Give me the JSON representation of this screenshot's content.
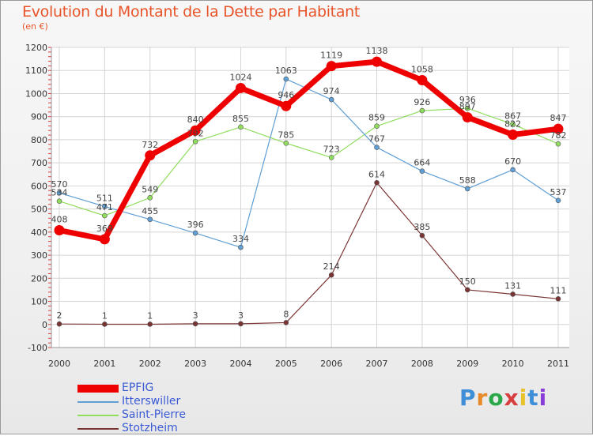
{
  "title": "Evolution du Montant de la Dette par Habitant",
  "subtitle": "(en €)",
  "brand": {
    "text": "Proxiti",
    "letters": [
      "P",
      "r",
      "o",
      "x",
      "i",
      "t",
      "i"
    ],
    "colors": [
      "#3e8fd8",
      "#e88a2a",
      "#2aa84a",
      "#d83e3e",
      "#e8c22a",
      "#3e8fd8",
      "#8a3ed8"
    ]
  },
  "chart_data": {
    "type": "line",
    "x": [
      "2000",
      "2001",
      "2002",
      "2003",
      "2004",
      "2005",
      "2006",
      "2007",
      "2008",
      "2009",
      "2010",
      "2011"
    ],
    "ylim": [
      -100,
      1200
    ],
    "yticks": [
      -100,
      0,
      100,
      200,
      300,
      400,
      500,
      600,
      700,
      800,
      900,
      1000,
      1100,
      1200
    ],
    "grid": true,
    "legend_position": "bottom-left",
    "series": [
      {
        "name": "EPFIG",
        "color": "#ee0000",
        "values": [
          408,
          369,
          732,
          840,
          1024,
          946,
          1119,
          1138,
          1058,
          897,
          822,
          847
        ],
        "labels": [
          "408",
          "369",
          "732",
          "840",
          "1024",
          "946",
          "1119",
          "1138",
          "1058",
          "897",
          "822",
          "847"
        ]
      },
      {
        "name": "Itterswiller",
        "color": "#5f9fd6",
        "values": [
          570,
          511,
          455,
          396,
          334,
          1063,
          974,
          767,
          664,
          588,
          670,
          537
        ],
        "labels": [
          "570",
          "511",
          "455",
          "396",
          "334",
          "1063",
          "974",
          "767",
          "664",
          "588",
          "670",
          "537"
        ]
      },
      {
        "name": "Saint-Pierre",
        "color": "#90dd5e",
        "values": [
          534,
          471,
          549,
          792,
          855,
          785,
          723,
          859,
          926,
          936,
          867,
          782
        ],
        "labels": [
          "534",
          "471",
          "549",
          "792",
          "855",
          "785",
          "723",
          "859",
          "926",
          "936",
          "867",
          "782"
        ]
      },
      {
        "name": "Stotzheim",
        "color": "#7a3434",
        "values": [
          2,
          1,
          1,
          3,
          3,
          8,
          214,
          614,
          385,
          150,
          131,
          111
        ],
        "labels": [
          "2",
          "1",
          "1",
          "3",
          "3",
          "8",
          "214",
          "614",
          "385",
          "150",
          "131",
          "111"
        ]
      }
    ]
  }
}
